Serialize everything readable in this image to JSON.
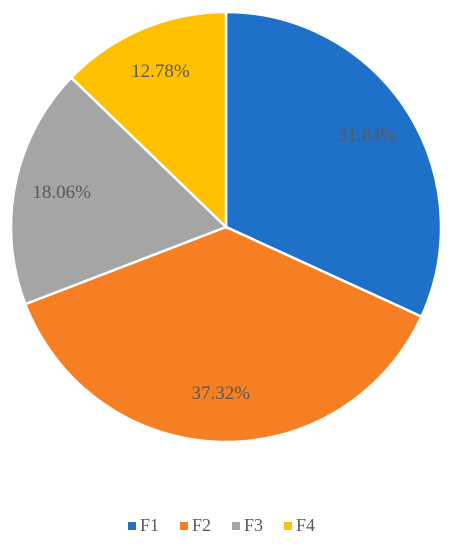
{
  "chart_data": {
    "type": "pie",
    "categories": [
      "F1",
      "F2",
      "F3",
      "F4"
    ],
    "values": [
      31.84,
      37.32,
      18.06,
      12.78
    ],
    "value_labels": [
      "31.84%",
      "37.32%",
      "18.06%",
      "12.78%"
    ],
    "colors": [
      "#1f70c8",
      "#f67f24",
      "#a5a5a5",
      "#ffc000"
    ],
    "legend": "bottom"
  }
}
